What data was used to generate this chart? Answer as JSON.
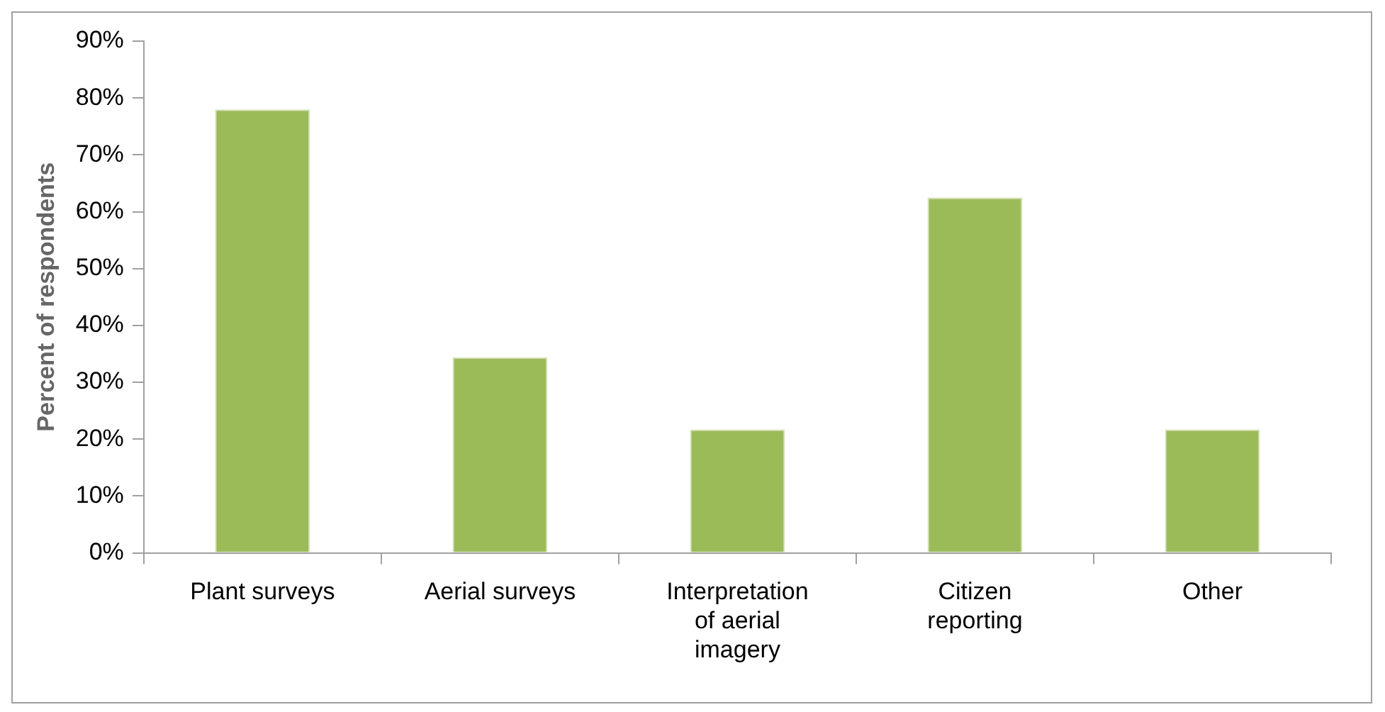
{
  "chart_data": {
    "type": "bar",
    "ylabel": "Percent of respondents",
    "categories": [
      "Plant surveys",
      "Aerial surveys",
      "Interpretation of aerial imagery",
      "Citizen reporting",
      "Other"
    ],
    "values": [
      78,
      34.4,
      21.7,
      62.5,
      21.7
    ],
    "color": "#9bbb59",
    "ylim": [
      0,
      90
    ],
    "yticks": [
      {
        "value": 0,
        "label": "0%"
      },
      {
        "value": 10,
        "label": "10%"
      },
      {
        "value": 20,
        "label": "20%"
      },
      {
        "value": 30,
        "label": "30%"
      },
      {
        "value": 40,
        "label": "40%"
      },
      {
        "value": 50,
        "label": "50%"
      },
      {
        "value": 60,
        "label": "60%"
      },
      {
        "value": 70,
        "label": "70%"
      },
      {
        "value": 80,
        "label": "80%"
      },
      {
        "value": 90,
        "label": "90%"
      }
    ],
    "grid": false,
    "legend": false
  }
}
